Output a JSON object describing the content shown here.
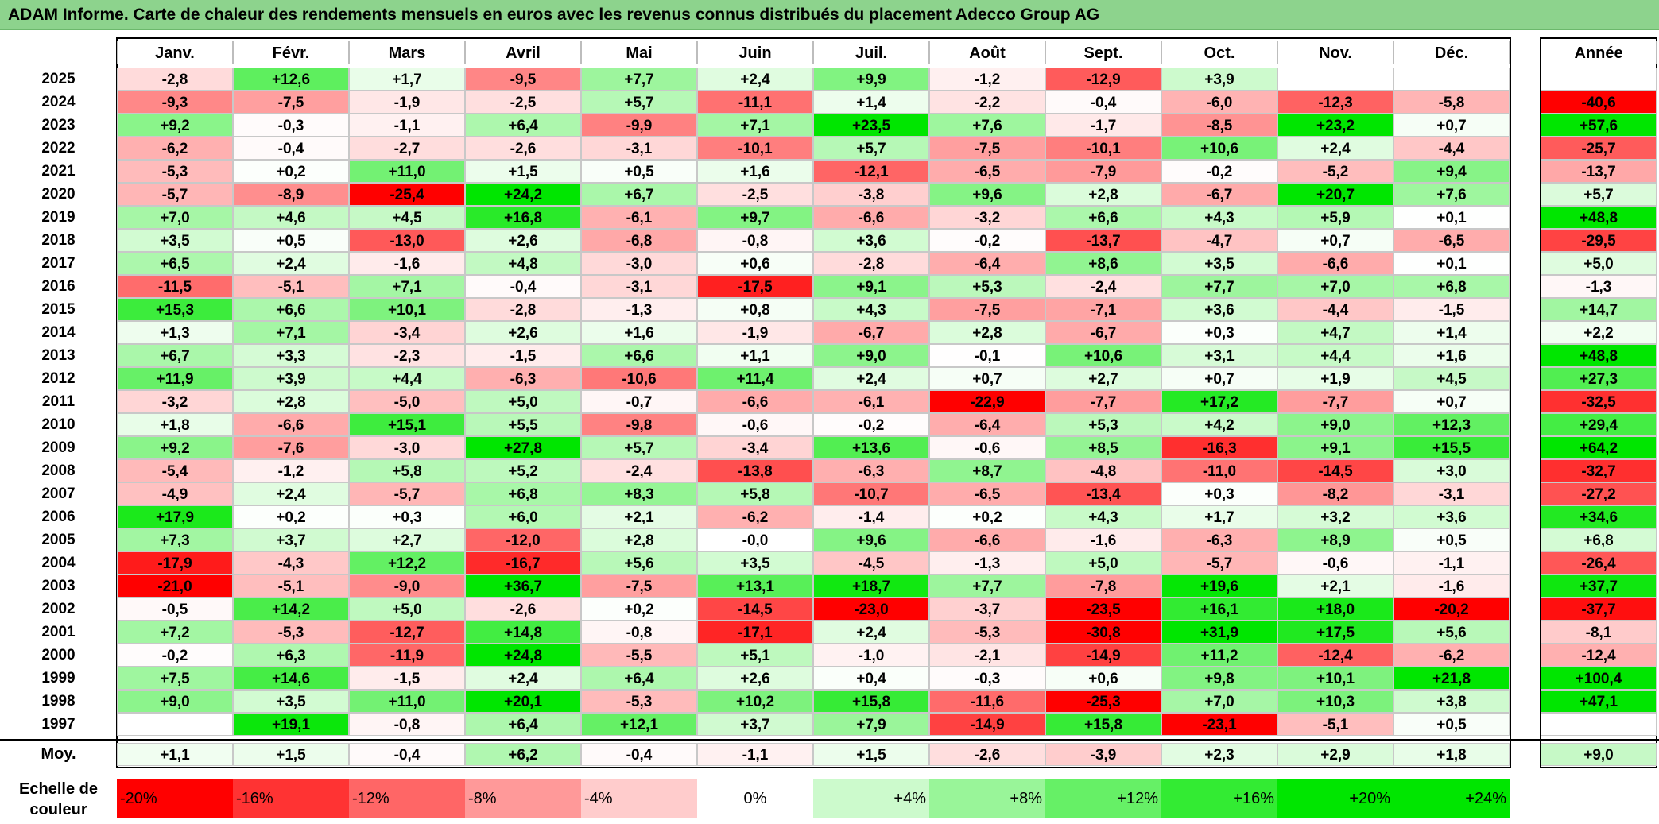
{
  "title": "ADAM Informe. Carte de chaleur des rendements mensuels en euros avec les revenus connus distribués du placement Adecco Group AG",
  "chart_data": {
    "type": "heatmap",
    "months": [
      "Janv.",
      "Févr.",
      "Mars",
      "Avril",
      "Mai",
      "Juin",
      "Juil.",
      "Août",
      "Sept.",
      "Oct.",
      "Nov.",
      "Déc."
    ],
    "annual_header": "Année",
    "rows": [
      {
        "year": "2025",
        "values": [
          "-2,8",
          "+12,6",
          "+1,7",
          "-9,5",
          "+7,7",
          "+2,4",
          "+9,9",
          "-1,2",
          "-12,9",
          "+3,9",
          "",
          ""
        ],
        "annual": ""
      },
      {
        "year": "2024",
        "values": [
          "-9,3",
          "-7,5",
          "-1,9",
          "-2,5",
          "+5,7",
          "-11,1",
          "+1,4",
          "-2,2",
          "-0,4",
          "-6,0",
          "-12,3",
          "-5,8"
        ],
        "annual": "-40,6"
      },
      {
        "year": "2023",
        "values": [
          "+9,2",
          "-0,3",
          "-1,1",
          "+6,4",
          "-9,9",
          "+7,1",
          "+23,5",
          "+7,6",
          "-1,7",
          "-8,5",
          "+23,2",
          "+0,7"
        ],
        "annual": "+57,6"
      },
      {
        "year": "2022",
        "values": [
          "-6,2",
          "-0,4",
          "-2,7",
          "-2,6",
          "-3,1",
          "-10,1",
          "+5,7",
          "-7,5",
          "-10,1",
          "+10,6",
          "+2,4",
          "-4,4"
        ],
        "annual": "-25,7"
      },
      {
        "year": "2021",
        "values": [
          "-5,3",
          "+0,2",
          "+11,0",
          "+1,5",
          "+0,5",
          "+1,6",
          "-12,1",
          "-6,5",
          "-7,9",
          "-0,2",
          "-5,2",
          "+9,4"
        ],
        "annual": "-13,7"
      },
      {
        "year": "2020",
        "values": [
          "-5,7",
          "-8,9",
          "-25,4",
          "+24,2",
          "+6,7",
          "-2,5",
          "-3,8",
          "+9,6",
          "+2,8",
          "-6,7",
          "+20,7",
          "+7,6"
        ],
        "annual": "+5,7"
      },
      {
        "year": "2019",
        "values": [
          "+7,0",
          "+4,6",
          "+4,5",
          "+16,8",
          "-6,1",
          "+9,7",
          "-6,6",
          "-3,2",
          "+6,6",
          "+4,3",
          "+5,9",
          "+0,1"
        ],
        "annual": "+48,8"
      },
      {
        "year": "2018",
        "values": [
          "+3,5",
          "+0,5",
          "-13,0",
          "+2,6",
          "-6,8",
          "-0,8",
          "+3,6",
          "-0,2",
          "-13,7",
          "-4,7",
          "+0,7",
          "-6,5"
        ],
        "annual": "-29,5"
      },
      {
        "year": "2017",
        "values": [
          "+6,5",
          "+2,4",
          "-1,6",
          "+4,8",
          "-3,0",
          "+0,6",
          "-2,8",
          "-6,4",
          "+8,6",
          "+3,5",
          "-6,6",
          "+0,1"
        ],
        "annual": "+5,0"
      },
      {
        "year": "2016",
        "values": [
          "-11,5",
          "-5,1",
          "+7,1",
          "-0,4",
          "-3,1",
          "-17,5",
          "+9,1",
          "+5,3",
          "-2,4",
          "+7,7",
          "+7,0",
          "+6,8"
        ],
        "annual": "-1,3"
      },
      {
        "year": "2015",
        "values": [
          "+15,3",
          "+6,6",
          "+10,1",
          "-2,8",
          "-1,3",
          "+0,8",
          "+4,3",
          "-7,5",
          "-7,1",
          "+3,6",
          "-4,4",
          "-1,5"
        ],
        "annual": "+14,7"
      },
      {
        "year": "2014",
        "values": [
          "+1,3",
          "+7,1",
          "-3,4",
          "+2,6",
          "+1,6",
          "-1,9",
          "-6,7",
          "+2,8",
          "-6,7",
          "+0,3",
          "+4,7",
          "+1,4"
        ],
        "annual": "+2,2"
      },
      {
        "year": "2013",
        "values": [
          "+6,7",
          "+3,3",
          "-2,3",
          "-1,5",
          "+6,6",
          "+1,1",
          "+9,0",
          "-0,1",
          "+10,6",
          "+3,1",
          "+4,4",
          "+1,6"
        ],
        "annual": "+48,8"
      },
      {
        "year": "2012",
        "values": [
          "+11,9",
          "+3,9",
          "+4,4",
          "-6,3",
          "-10,6",
          "+11,4",
          "+2,4",
          "+0,7",
          "+2,7",
          "+0,7",
          "+1,9",
          "+4,5"
        ],
        "annual": "+27,3"
      },
      {
        "year": "2011",
        "values": [
          "-3,2",
          "+2,8",
          "-5,0",
          "+5,0",
          "-0,7",
          "-6,6",
          "-6,1",
          "-22,9",
          "-7,7",
          "+17,2",
          "-7,7",
          "+0,7"
        ],
        "annual": "-32,5"
      },
      {
        "year": "2010",
        "values": [
          "+1,8",
          "-6,6",
          "+15,1",
          "+5,5",
          "-9,8",
          "-0,6",
          "-0,2",
          "-6,4",
          "+5,3",
          "+4,2",
          "+9,0",
          "+12,3"
        ],
        "annual": "+29,4"
      },
      {
        "year": "2009",
        "values": [
          "+9,2",
          "-7,6",
          "-3,0",
          "+27,8",
          "+5,7",
          "-3,4",
          "+13,6",
          "-0,6",
          "+8,5",
          "-16,3",
          "+9,1",
          "+15,5"
        ],
        "annual": "+64,2"
      },
      {
        "year": "2008",
        "values": [
          "-5,4",
          "-1,2",
          "+5,8",
          "+5,2",
          "-2,4",
          "-13,8",
          "-6,3",
          "+8,7",
          "-4,8",
          "-11,0",
          "-14,5",
          "+3,0"
        ],
        "annual": "-32,7"
      },
      {
        "year": "2007",
        "values": [
          "-4,9",
          "+2,4",
          "-5,7",
          "+6,8",
          "+8,3",
          "+5,8",
          "-10,7",
          "-6,5",
          "-13,4",
          "+0,3",
          "-8,2",
          "-3,1"
        ],
        "annual": "-27,2"
      },
      {
        "year": "2006",
        "values": [
          "+17,9",
          "+0,2",
          "+0,3",
          "+6,0",
          "+2,1",
          "-6,2",
          "-1,4",
          "+0,2",
          "+4,3",
          "+1,7",
          "+3,2",
          "+3,6"
        ],
        "annual": "+34,6"
      },
      {
        "year": "2005",
        "values": [
          "+7,3",
          "+3,7",
          "+2,7",
          "-12,0",
          "+2,8",
          "-0,0",
          "+9,6",
          "-6,6",
          "-1,6",
          "-6,3",
          "+8,9",
          "+0,5"
        ],
        "annual": "+6,8"
      },
      {
        "year": "2004",
        "values": [
          "-17,9",
          "-4,3",
          "+12,2",
          "-16,7",
          "+5,6",
          "+3,5",
          "-4,5",
          "-1,3",
          "+5,0",
          "-5,7",
          "-0,6",
          "-1,1"
        ],
        "annual": "-26,4"
      },
      {
        "year": "2003",
        "values": [
          "-21,0",
          "-5,1",
          "-9,0",
          "+36,7",
          "-7,5",
          "+13,1",
          "+18,7",
          "+7,7",
          "-7,8",
          "+19,6",
          "+2,1",
          "-1,6"
        ],
        "annual": "+37,7"
      },
      {
        "year": "2002",
        "values": [
          "-0,5",
          "+14,2",
          "+5,0",
          "-2,6",
          "+0,2",
          "-14,5",
          "-23,0",
          "-3,7",
          "-23,5",
          "+16,1",
          "+18,0",
          "-20,2"
        ],
        "annual": "-37,7"
      },
      {
        "year": "2001",
        "values": [
          "+7,2",
          "-5,3",
          "-12,7",
          "+14,8",
          "-0,8",
          "-17,1",
          "+2,4",
          "-5,3",
          "-30,8",
          "+31,9",
          "+17,5",
          "+5,6"
        ],
        "annual": "-8,1"
      },
      {
        "year": "2000",
        "values": [
          "-0,2",
          "+6,3",
          "-11,9",
          "+24,8",
          "-5,5",
          "+5,1",
          "-1,0",
          "-2,1",
          "-14,9",
          "+11,2",
          "-12,4",
          "-6,2"
        ],
        "annual": "-12,4"
      },
      {
        "year": "1999",
        "values": [
          "+7,5",
          "+14,6",
          "-1,5",
          "+2,4",
          "+6,4",
          "+2,6",
          "+0,4",
          "-0,3",
          "+0,6",
          "+9,8",
          "+10,1",
          "+21,8"
        ],
        "annual": "+100,4"
      },
      {
        "year": "1998",
        "values": [
          "+9,0",
          "+3,5",
          "+11,0",
          "+20,1",
          "-5,3",
          "+10,2",
          "+15,8",
          "-11,6",
          "-25,3",
          "+7,0",
          "+10,3",
          "+3,8"
        ],
        "annual": "+47,1"
      },
      {
        "year": "1997",
        "values": [
          "",
          "+19,1",
          "-0,8",
          "+6,4",
          "+12,1",
          "+3,7",
          "+7,9",
          "-14,9",
          "+15,8",
          "-23,1",
          "-5,1",
          "+0,5"
        ],
        "annual": ""
      }
    ],
    "average": {
      "label": "Moy.",
      "values": [
        "+1,1",
        "+1,5",
        "-0,4",
        "+6,2",
        "-0,4",
        "-1,1",
        "+1,5",
        "-2,6",
        "-3,9",
        "+2,3",
        "+2,9",
        "+1,8"
      ],
      "annual": "+9,0"
    },
    "color_scale": {
      "label": "Echelle de couleur",
      "steps": [
        "-20%",
        "-16%",
        "-12%",
        "-8%",
        "-4%",
        "0%",
        "+4%",
        "+8%",
        "+12%",
        "+16%",
        "+20%",
        "+24%"
      ],
      "negative_color": "#ff0000",
      "neutral_color": "#ffffff",
      "positive_color": "#00e600"
    }
  }
}
